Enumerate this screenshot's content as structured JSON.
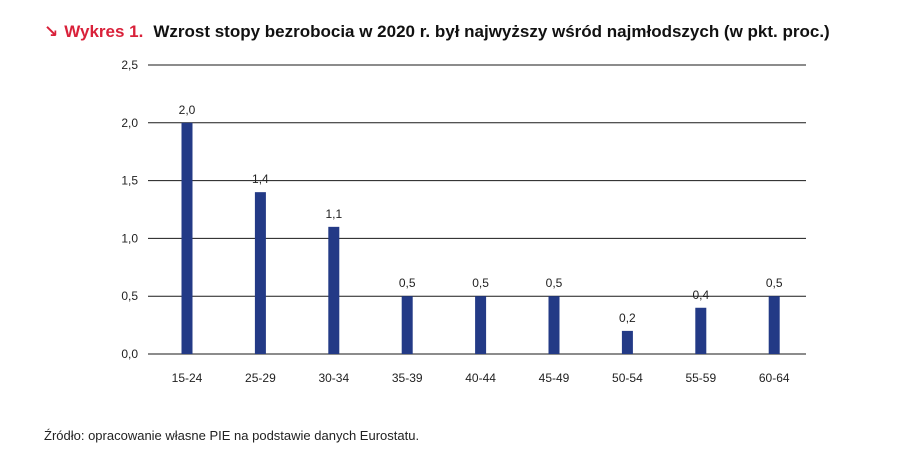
{
  "header": {
    "arrow": "↘",
    "label": "Wykres 1.",
    "title": "Wzrost stopy bezrobocia w 2020 r. był najwyższy wśród najmłodszych (w pkt. proc.)"
  },
  "source": "Źródło: opracowanie własne PIE na podstawie danych Eurostatu.",
  "chart_data": {
    "type": "bar",
    "categories": [
      "15-24",
      "25-29",
      "30-34",
      "35-39",
      "40-44",
      "45-49",
      "50-54",
      "55-59",
      "60-64"
    ],
    "values": [
      2.0,
      1.4,
      1.1,
      0.5,
      0.5,
      0.5,
      0.2,
      0.4,
      0.5
    ],
    "value_labels": [
      "2,0",
      "1,4",
      "1,1",
      "0,5",
      "0,5",
      "0,5",
      "0,2",
      "0,4",
      "0,5"
    ],
    "yticks": [
      0.0,
      0.5,
      1.0,
      1.5,
      2.0,
      2.5
    ],
    "ytick_labels": [
      "0,0",
      "0,5",
      "1,0",
      "1,5",
      "2,0",
      "2,5"
    ],
    "ylim": [
      0,
      2.5
    ],
    "grid": true,
    "bar_color": "#233a86",
    "grid_color": "#1a1a1a"
  },
  "colors": {
    "accent": "#d9213a",
    "bar": "#233a86"
  }
}
